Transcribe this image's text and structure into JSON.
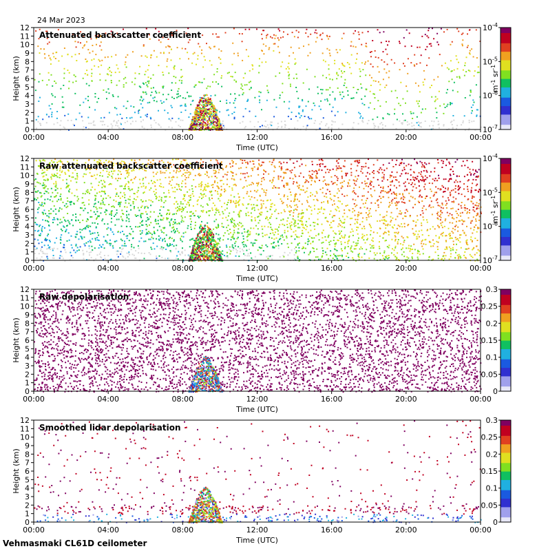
{
  "date": "24 Mar 2023",
  "footer": "Vehmasmaki CL61D ceilometer",
  "colors": {
    "rainbow": [
      "#e8e8f8",
      "#a0a0ec",
      "#3030d0",
      "#1a5ae0",
      "#20b0e0",
      "#10c060",
      "#80e020",
      "#e0e020",
      "#f0a020",
      "#e04020",
      "#c00020",
      "#800060"
    ],
    "clutter": "#d8d8d8",
    "depol_bg": "#800060"
  },
  "chart_data": [
    {
      "type": "heatmap",
      "title": "Attenuated backscatter coefficient",
      "xlabel": "Time (UTC)",
      "ylabel": "Height (km)",
      "xticks": [
        "00:00",
        "04:00",
        "08:00",
        "12:00",
        "16:00",
        "20:00",
        "00:00"
      ],
      "xlim": [
        0,
        24
      ],
      "ylim": [
        0,
        12
      ],
      "yticks": [
        0,
        1,
        2,
        3,
        4,
        5,
        6,
        7,
        8,
        9,
        10,
        11,
        12
      ],
      "colorbar": {
        "scale": "log",
        "range": [
          1e-07,
          0.0001
        ],
        "ticks": [
          "10",
          "10",
          "10",
          "10"
        ],
        "tick_exponents": [
          "-7",
          "-6",
          "-5",
          "-4"
        ],
        "unit_parts": [
          "m",
          "-1",
          " sr",
          "-1"
        ]
      }
    },
    {
      "type": "heatmap",
      "title": "Raw attenuated backscatter coefficient",
      "xlabel": "Time (UTC)",
      "ylabel": "Height (km)",
      "xticks": [
        "00:00",
        "04:00",
        "08:00",
        "12:00",
        "16:00",
        "20:00",
        "00:00"
      ],
      "xlim": [
        0,
        24
      ],
      "ylim": [
        0,
        12
      ],
      "yticks": [
        0,
        1,
        2,
        3,
        4,
        5,
        6,
        7,
        8,
        9,
        10,
        11,
        12
      ],
      "colorbar": {
        "scale": "log",
        "range": [
          1e-07,
          0.0001
        ],
        "ticks": [
          "10",
          "10",
          "10",
          "10"
        ],
        "tick_exponents": [
          "-7",
          "-6",
          "-5",
          "-4"
        ],
        "unit_parts": [
          "m",
          "-1",
          " sr",
          "-1"
        ]
      }
    },
    {
      "type": "heatmap",
      "title": "Raw depolarisation",
      "xlabel": "Time (UTC)",
      "ylabel": "Height (km)",
      "xticks": [
        "00:00",
        "04:00",
        "08:00",
        "12:00",
        "16:00",
        "20:00",
        "00:00"
      ],
      "xlim": [
        0,
        24
      ],
      "ylim": [
        0,
        12
      ],
      "yticks": [
        0,
        1,
        2,
        3,
        4,
        5,
        6,
        7,
        8,
        9,
        10,
        11,
        12
      ],
      "colorbar": {
        "scale": "linear",
        "range": [
          0,
          0.3
        ],
        "ticks": [
          "0",
          "0.05",
          "0.1",
          "0.15",
          "0.2",
          "0.25",
          "0.3"
        ]
      }
    },
    {
      "type": "heatmap",
      "title": "Smoothed lidar depolarisation",
      "xlabel": "Time (UTC)",
      "ylabel": "Height (km)",
      "xticks": [
        "00:00",
        "04:00",
        "08:00",
        "12:00",
        "16:00",
        "20:00",
        "00:00"
      ],
      "xlim": [
        0,
        24
      ],
      "ylim": [
        0,
        12
      ],
      "yticks": [
        0,
        1,
        2,
        3,
        4,
        5,
        6,
        7,
        8,
        9,
        10,
        11,
        12
      ],
      "colorbar": {
        "scale": "linear",
        "range": [
          0,
          0.3
        ],
        "ticks": [
          "0",
          "0.05",
          "0.1",
          "0.15",
          "0.2",
          "0.25",
          "0.3"
        ]
      }
    }
  ]
}
